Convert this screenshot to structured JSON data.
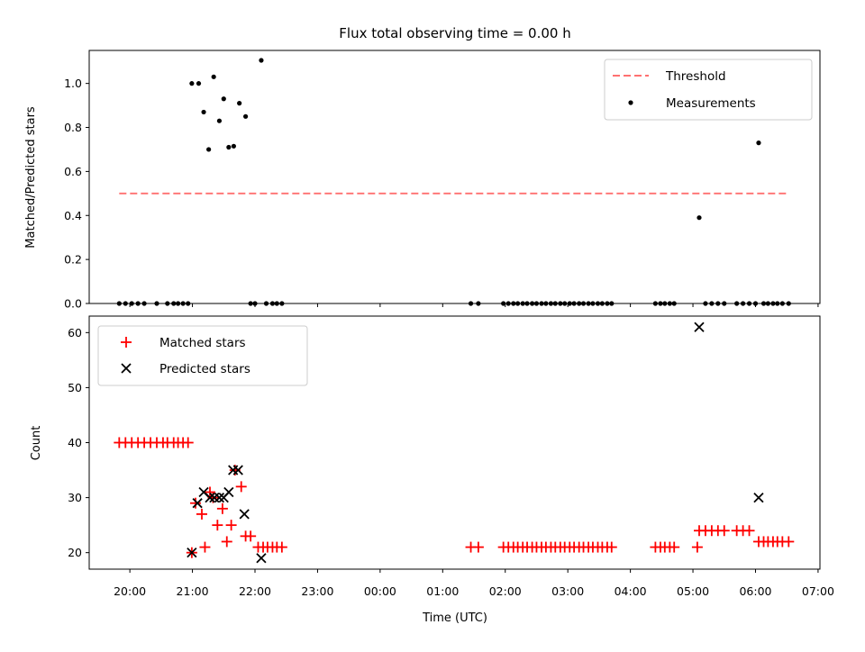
{
  "chart_data": [
    {
      "type": "scatter",
      "title": "Flux total observing time = 0.00 h",
      "xlabel": "",
      "ylabel": "Matched/Predicted stars",
      "ylim": [
        0,
        1.15
      ],
      "yticks": [
        "0.0",
        "0.2",
        "0.4",
        "0.6",
        "0.8",
        "1.0"
      ],
      "legend": "top-right",
      "threshold": {
        "name": "Threshold",
        "value": 0.5,
        "x_start": 19.83,
        "x_end": 30.53,
        "color": "#ff7070"
      },
      "series": [
        {
          "name": "Measurements",
          "color": "#000000",
          "x": [
            19.83,
            19.93,
            20.03,
            20.13,
            20.23,
            20.43,
            20.6,
            20.7,
            20.77,
            20.85,
            20.93,
            20.99,
            21.1,
            21.18,
            21.26,
            21.34,
            21.43,
            21.5,
            21.58,
            21.66,
            21.75,
            21.85,
            21.93,
            22.0,
            22.1,
            22.18,
            22.28,
            22.35,
            22.43,
            25.45,
            25.57,
            25.97,
            26.05,
            26.13,
            26.2,
            26.28,
            26.35,
            26.43,
            26.5,
            26.58,
            26.65,
            26.73,
            26.8,
            26.88,
            26.95,
            27.03,
            27.1,
            27.18,
            27.25,
            27.33,
            27.4,
            27.48,
            27.55,
            27.63,
            27.7,
            28.4,
            28.48,
            28.55,
            28.63,
            28.7,
            29.1,
            29.2,
            29.3,
            29.4,
            29.5,
            29.7,
            29.8,
            29.9,
            30.0,
            30.05,
            30.13,
            30.2,
            30.28,
            30.35,
            30.43,
            30.53
          ],
          "y": [
            0,
            0,
            0,
            0,
            0,
            0,
            0,
            0,
            0,
            0,
            0,
            1.0,
            1.0,
            0.87,
            0.7,
            1.03,
            0.83,
            0.93,
            0.71,
            0.715,
            0.91,
            0.85,
            0,
            0,
            1.105,
            0,
            0,
            0,
            0,
            0,
            0,
            0,
            0,
            0,
            0,
            0,
            0,
            0,
            0,
            0,
            0,
            0,
            0,
            0,
            0,
            0,
            0,
            0,
            0,
            0,
            0,
            0,
            0,
            0,
            0,
            0,
            0,
            0,
            0,
            0,
            0.39,
            0,
            0,
            0,
            0,
            0,
            0,
            0,
            0,
            0.73,
            0,
            0,
            0,
            0,
            0,
            0
          ]
        }
      ]
    },
    {
      "type": "scatter",
      "title": "",
      "xlabel": "Time (UTC)",
      "ylabel": "Count",
      "xlim": [
        19.35,
        31.03
      ],
      "ylim": [
        17,
        63
      ],
      "yticks": [
        "20",
        "30",
        "40",
        "50",
        "60"
      ],
      "xticks": [
        "20:00",
        "21:00",
        "22:00",
        "23:00",
        "00:00",
        "01:00",
        "02:00",
        "03:00",
        "04:00",
        "05:00",
        "06:00",
        "07:00"
      ],
      "legend": "top-left",
      "series": [
        {
          "name": "Matched stars",
          "marker": "+",
          "color": "#ff0000",
          "x": [
            19.83,
            19.93,
            20.03,
            20.13,
            20.23,
            20.33,
            20.43,
            20.53,
            20.6,
            20.7,
            20.77,
            20.85,
            20.93,
            20.99,
            21.05,
            21.15,
            21.2,
            21.28,
            21.33,
            21.4,
            21.48,
            21.55,
            21.62,
            21.68,
            21.78,
            21.85,
            21.93,
            22.05,
            22.13,
            22.2,
            22.28,
            22.35,
            22.43,
            25.45,
            25.57,
            25.97,
            26.05,
            26.13,
            26.2,
            26.28,
            26.35,
            26.43,
            26.5,
            26.58,
            26.65,
            26.73,
            26.8,
            26.88,
            26.95,
            27.03,
            27.1,
            27.18,
            27.25,
            27.33,
            27.4,
            27.48,
            27.55,
            27.63,
            27.7,
            28.4,
            28.48,
            28.55,
            28.63,
            28.7,
            29.07,
            29.1,
            29.2,
            29.3,
            29.4,
            29.5,
            29.7,
            29.8,
            29.9,
            30.05,
            30.13,
            30.2,
            30.28,
            30.35,
            30.43,
            30.53
          ],
          "y": [
            40,
            40,
            40,
            40,
            40,
            40,
            40,
            40,
            40,
            40,
            40,
            40,
            40,
            20,
            29,
            27,
            21,
            31,
            30,
            25,
            28,
            22,
            25,
            35,
            32,
            23,
            23,
            21,
            21,
            21,
            21,
            21,
            21,
            21,
            21,
            21,
            21,
            21,
            21,
            21,
            21,
            21,
            21,
            21,
            21,
            21,
            21,
            21,
            21,
            21,
            21,
            21,
            21,
            21,
            21,
            21,
            21,
            21,
            21,
            21,
            21,
            21,
            21,
            21,
            21,
            24,
            24,
            24,
            24,
            24,
            24,
            24,
            24,
            22,
            22,
            22,
            22,
            22,
            22,
            22
          ]
        },
        {
          "name": "Predicted stars",
          "marker": "x",
          "color": "#000000",
          "x": [
            20.99,
            21.08,
            21.18,
            21.28,
            21.35,
            21.43,
            21.5,
            21.58,
            21.65,
            21.73,
            21.83,
            22.1,
            29.1,
            30.05
          ],
          "y": [
            20,
            29,
            31,
            30,
            30,
            30,
            30,
            31,
            35,
            35,
            27,
            19,
            61,
            30
          ]
        }
      ]
    }
  ]
}
